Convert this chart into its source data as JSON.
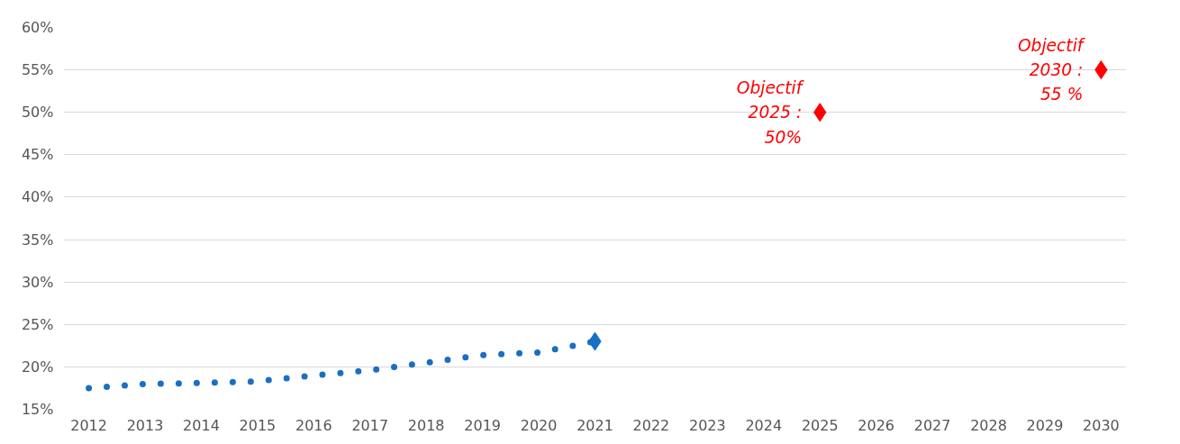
{
  "chart_data": {
    "type": "line",
    "x": [
      2012,
      2013,
      2014,
      2015,
      2016,
      2017,
      2018,
      2019,
      2020,
      2021
    ],
    "series": [
      {
        "color": "#1a6fc4",
        "line_style": "dotted",
        "marker": "none",
        "values": [
          17.5,
          18.0,
          18.1,
          18.3,
          19.0,
          19.6,
          20.5,
          21.4,
          21.7,
          23.0
        ]
      },
      {
        "type": "scatter",
        "color": "#1a6fc4",
        "marker": "diamond",
        "x": [
          2021
        ],
        "values": [
          23.0
        ]
      },
      {
        "type": "scatter",
        "color": "#ff0000",
        "marker": "diamond",
        "x": [
          2025,
          2030
        ],
        "values": [
          50,
          55
        ]
      }
    ],
    "annotations": [
      {
        "text": "Objectif\n2025 :\n50%",
        "x": 2025,
        "y": 50
      },
      {
        "text": "Objectif\n2030 :\n55 %",
        "x": 2030,
        "y": 55
      }
    ],
    "xlim": [
      2011.55,
      2030.45
    ],
    "xticks": [
      2012,
      2013,
      2014,
      2015,
      2016,
      2017,
      2018,
      2019,
      2020,
      2021,
      2022,
      2023,
      2024,
      2025,
      2026,
      2027,
      2028,
      2029,
      2030
    ],
    "ylim": [
      15,
      60
    ],
    "yticks": [
      {
        "value": 15,
        "label": "15%"
      },
      {
        "value": 20,
        "label": "20%"
      },
      {
        "value": 25,
        "label": "25%"
      },
      {
        "value": 30,
        "label": "30%"
      },
      {
        "value": 35,
        "label": "35%"
      },
      {
        "value": 40,
        "label": "40%"
      },
      {
        "value": 45,
        "label": "45%"
      },
      {
        "value": 50,
        "label": "50%"
      },
      {
        "value": 55,
        "label": "55%"
      },
      {
        "value": 60,
        "label": "60%"
      }
    ],
    "grid": "y"
  }
}
